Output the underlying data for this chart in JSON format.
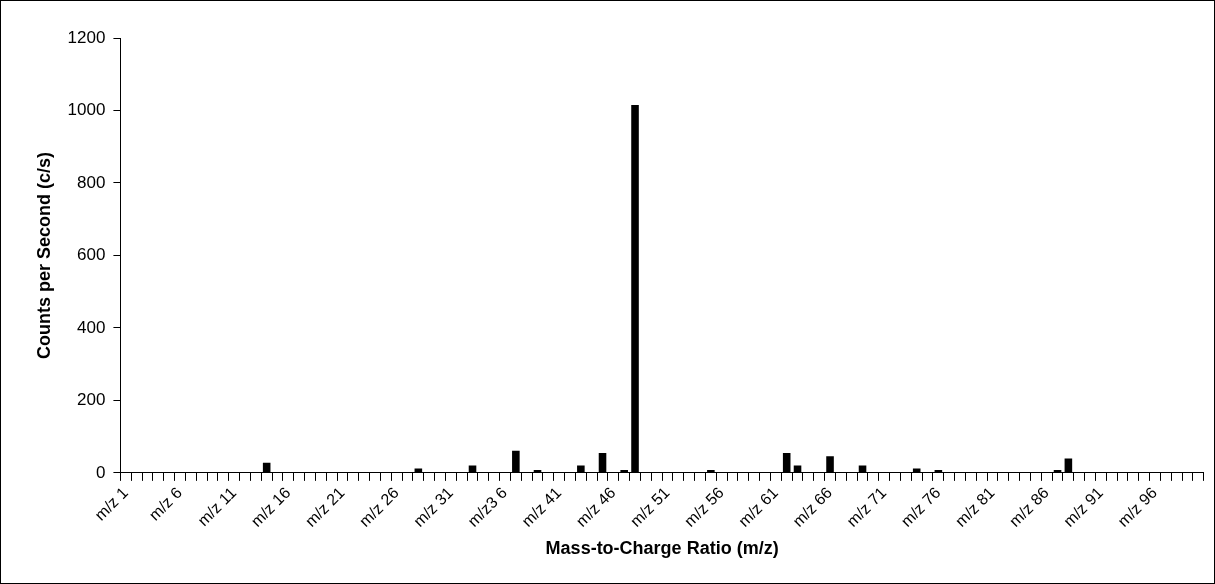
{
  "chart_data": {
    "type": "bar",
    "xlabel": "Mass-to-Charge Ratio (m/z)",
    "ylabel": "Counts per Second (c/s)",
    "categories": [
      "m/z 1",
      null,
      null,
      null,
      null,
      "m/z 6",
      null,
      null,
      null,
      null,
      "m/z 11",
      null,
      null,
      null,
      null,
      "m/z 16",
      null,
      null,
      null,
      null,
      "m/z 21",
      null,
      null,
      null,
      null,
      "m/z 26",
      null,
      null,
      null,
      null,
      "m/z 31",
      null,
      null,
      null,
      null,
      "m/z3 6",
      null,
      null,
      null,
      null,
      "m/z 41",
      null,
      null,
      null,
      null,
      "m/z 46",
      null,
      null,
      null,
      null,
      "m/z 51",
      null,
      null,
      null,
      null,
      "m/z 56",
      null,
      null,
      null,
      null,
      "m/z 61",
      null,
      null,
      null,
      null,
      "m/z 66",
      null,
      null,
      null,
      null,
      "m/z 71",
      null,
      null,
      null,
      null,
      "m/z 76",
      null,
      null,
      null,
      null,
      "m/z 81",
      null,
      null,
      null,
      null,
      "m/z 86",
      null,
      null,
      null,
      null,
      "m/z 91",
      null,
      null,
      null,
      null,
      "m/z 96",
      null,
      null,
      null,
      null
    ],
    "values": [
      0,
      0,
      0,
      0,
      0,
      0,
      0,
      0,
      0,
      0,
      0,
      0,
      0,
      28,
      0,
      0,
      0,
      0,
      0,
      0,
      0,
      0,
      0,
      0,
      0,
      0,
      0,
      12,
      0,
      0,
      0,
      0,
      20,
      0,
      0,
      0,
      61,
      0,
      8,
      0,
      0,
      0,
      20,
      0,
      55,
      0,
      8,
      1015,
      0,
      0,
      0,
      0,
      0,
      0,
      8,
      0,
      0,
      0,
      0,
      0,
      0,
      55,
      20,
      0,
      0,
      46,
      0,
      0,
      20,
      0,
      0,
      0,
      0,
      12,
      0,
      8,
      0,
      0,
      0,
      0,
      0,
      0,
      0,
      0,
      0,
      0,
      8,
      40,
      0,
      0,
      0,
      0,
      0,
      0,
      0,
      0,
      0,
      0,
      0,
      0
    ],
    "color": "#000000",
    "ylim": [
      0,
      1200
    ],
    "yticks": [
      0,
      200,
      400,
      600,
      800,
      1000,
      1200
    ],
    "grid": false,
    "legend": false
  }
}
